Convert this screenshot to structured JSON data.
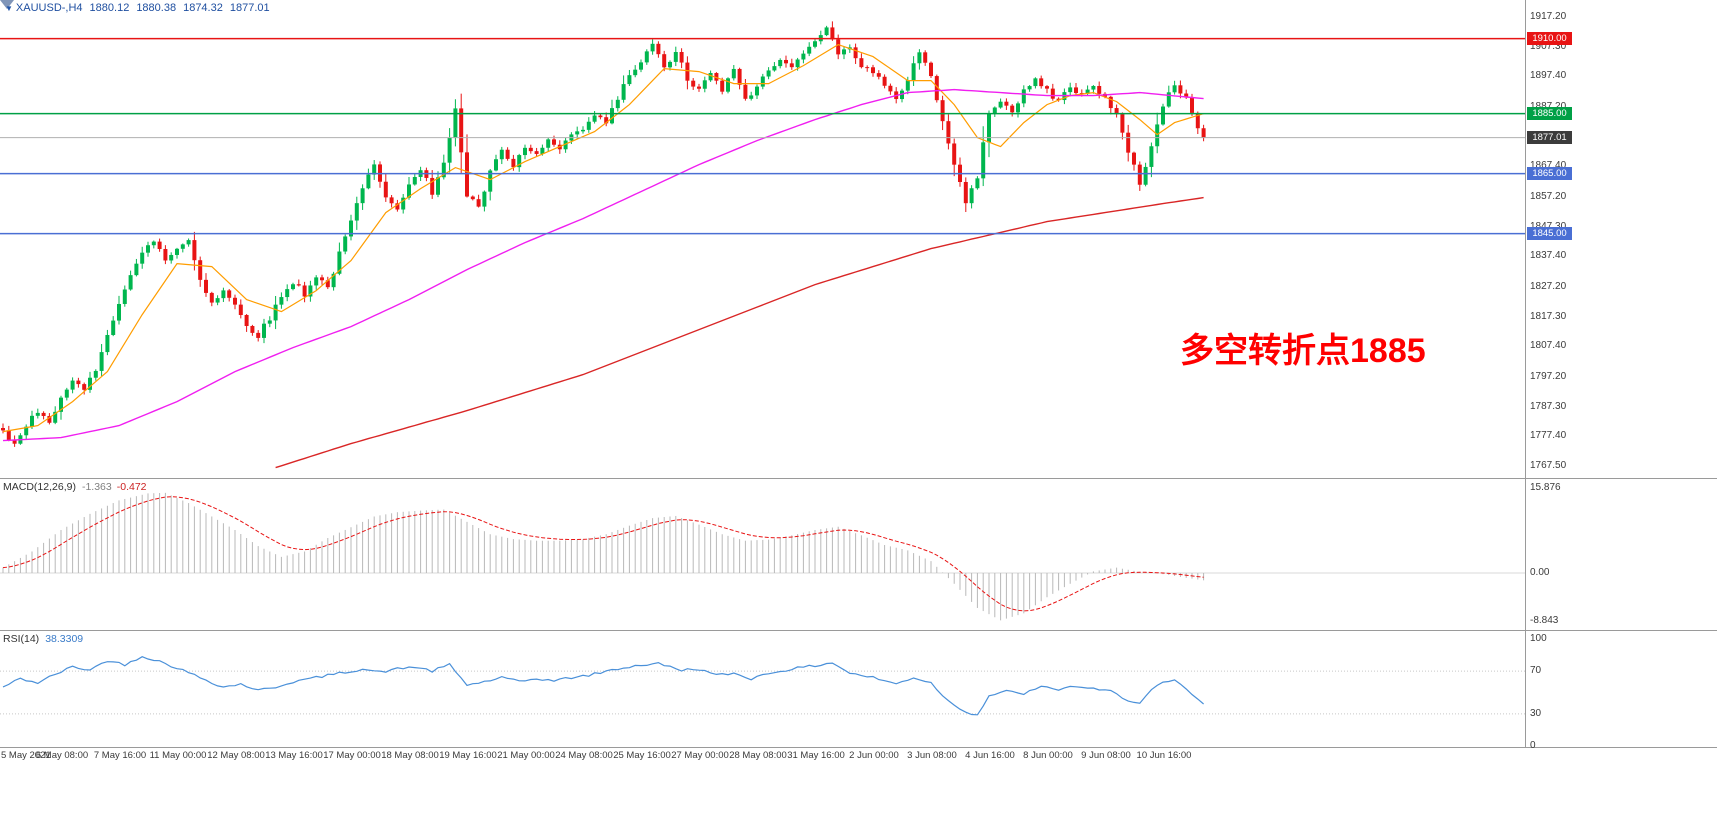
{
  "header": {
    "symbol_timeframe": "XAUUSD-,H4",
    "open": "1880.12",
    "high": "1880.38",
    "low": "1874.32",
    "close": "1877.01"
  },
  "colors": {
    "bull": "#00b64e",
    "bear": "#e81414",
    "ma_fast": "#ff9d00",
    "ma_mid": "#f01ff0",
    "ma_slow": "#d92626",
    "macd_hist": "#b8b8b8",
    "macd_signal": "#e81414",
    "rsi_line": "#4a90d9",
    "header_text": "#1f4fa0",
    "annotation": "#ff0000",
    "axis_text": "#3a3a3a",
    "separator": "#9a9a9a",
    "current_price_line": "#b0b0b0",
    "current_price_badge": "#3c3c3c"
  },
  "chart_data": {
    "type": "candlestick",
    "title": "XAUUSD- H4 candlestick chart with MACD and RSI",
    "symbol": "XAUUSD-",
    "timeframe": "H4",
    "price_axis": {
      "min": 1767.5,
      "max": 1917.2,
      "ticks": [
        "1917.20",
        "1907.30",
        "1897.40",
        "1887.20",
        "1877.30",
        "1867.40",
        "1857.20",
        "1847.30",
        "1837.40",
        "1827.20",
        "1817.30",
        "1807.40",
        "1797.20",
        "1787.30",
        "1777.40",
        "1767.50"
      ]
    },
    "time_axis": {
      "labels": [
        "5 May 2021",
        "6 May 08:00",
        "7 May 16:00",
        "11 May 00:00",
        "12 May 08:00",
        "13 May 16:00",
        "17 May 00:00",
        "18 May 08:00",
        "19 May 16:00",
        "21 May 00:00",
        "24 May 08:00",
        "25 May 16:00",
        "27 May 00:00",
        "28 May 08:00",
        "31 May 16:00",
        "2 Jun 00:00",
        "3 Jun 08:00",
        "4 Jun 16:00",
        "8 Jun 00:00",
        "9 Jun 08:00",
        "10 Jun 16:00"
      ]
    },
    "horizontal_lines": [
      {
        "label": "1910.00",
        "price": 1910.0,
        "color": "#e81414",
        "badge_bg": "#e81414",
        "interactable": true
      },
      {
        "label": "1885.00",
        "price": 1885.0,
        "color": "#00a046",
        "badge_bg": "#00a046",
        "interactable": true
      },
      {
        "label": "1877.01",
        "price": 1877.01,
        "color": "#b0b0b0",
        "badge_bg": "#3c3c3c",
        "interactable": false
      },
      {
        "label": "1865.00",
        "price": 1865.0,
        "color": "#4a6fd4",
        "badge_bg": "#4a6fd4",
        "interactable": true
      },
      {
        "label": "1845.00",
        "price": 1845.0,
        "color": "#4a6fd4",
        "badge_bg": "#4a6fd4",
        "interactable": true
      }
    ],
    "annotation": {
      "text": "多空转折点1885"
    },
    "price_path": [
      [
        0,
        1779
      ],
      [
        2,
        1774
      ],
      [
        4,
        1781
      ],
      [
        6,
        1786
      ],
      [
        8,
        1783
      ],
      [
        10,
        1790
      ],
      [
        12,
        1795
      ],
      [
        14,
        1793
      ],
      [
        16,
        1800
      ],
      [
        18,
        1812
      ],
      [
        20,
        1822
      ],
      [
        22,
        1831
      ],
      [
        24,
        1838
      ],
      [
        26,
        1843
      ],
      [
        28,
        1836
      ],
      [
        30,
        1840
      ],
      [
        32,
        1843
      ],
      [
        34,
        1830
      ],
      [
        36,
        1822
      ],
      [
        38,
        1826
      ],
      [
        40,
        1821
      ],
      [
        42,
        1815
      ],
      [
        44,
        1811
      ],
      [
        46,
        1817
      ],
      [
        48,
        1824
      ],
      [
        50,
        1829
      ],
      [
        52,
        1825
      ],
      [
        54,
        1831
      ],
      [
        56,
        1827
      ],
      [
        58,
        1838
      ],
      [
        60,
        1849
      ],
      [
        62,
        1860
      ],
      [
        64,
        1868
      ],
      [
        66,
        1858
      ],
      [
        68,
        1854
      ],
      [
        70,
        1861
      ],
      [
        72,
        1866
      ],
      [
        74,
        1859
      ],
      [
        76,
        1869
      ],
      [
        78,
        1886
      ],
      [
        80,
        1858
      ],
      [
        82,
        1853
      ],
      [
        84,
        1866
      ],
      [
        86,
        1872
      ],
      [
        88,
        1867
      ],
      [
        90,
        1874
      ],
      [
        92,
        1871
      ],
      [
        94,
        1876
      ],
      [
        96,
        1873
      ],
      [
        98,
        1877
      ],
      [
        100,
        1880
      ],
      [
        102,
        1884
      ],
      [
        104,
        1882
      ],
      [
        106,
        1890
      ],
      [
        108,
        1898
      ],
      [
        110,
        1902
      ],
      [
        112,
        1908
      ],
      [
        114,
        1900
      ],
      [
        116,
        1906
      ],
      [
        118,
        1896
      ],
      [
        120,
        1893
      ],
      [
        122,
        1898
      ],
      [
        124,
        1893
      ],
      [
        126,
        1899
      ],
      [
        128,
        1890
      ],
      [
        130,
        1894
      ],
      [
        132,
        1899
      ],
      [
        134,
        1903
      ],
      [
        136,
        1900
      ],
      [
        138,
        1906
      ],
      [
        140,
        1910
      ],
      [
        142,
        1914
      ],
      [
        144,
        1904
      ],
      [
        146,
        1908
      ],
      [
        148,
        1901
      ],
      [
        150,
        1899
      ],
      [
        152,
        1894
      ],
      [
        154,
        1889
      ],
      [
        156,
        1897
      ],
      [
        158,
        1906
      ],
      [
        160,
        1898
      ],
      [
        162,
        1882
      ],
      [
        164,
        1868
      ],
      [
        166,
        1856
      ],
      [
        168,
        1863
      ],
      [
        170,
        1886
      ],
      [
        172,
        1890
      ],
      [
        174,
        1886
      ],
      [
        176,
        1892
      ],
      [
        178,
        1896
      ],
      [
        180,
        1893
      ],
      [
        182,
        1889
      ],
      [
        184,
        1894
      ],
      [
        186,
        1891
      ],
      [
        188,
        1895
      ],
      [
        190,
        1890
      ],
      [
        192,
        1884
      ],
      [
        194,
        1872
      ],
      [
        196,
        1862
      ],
      [
        198,
        1874
      ],
      [
        200,
        1888
      ],
      [
        202,
        1895
      ],
      [
        204,
        1890
      ],
      [
        206,
        1880
      ],
      [
        207,
        1877.01
      ]
    ],
    "moving_averages": [
      {
        "name": "ma-fast",
        "points": [
          [
            0,
            1779
          ],
          [
            6,
            1781
          ],
          [
            12,
            1789
          ],
          [
            18,
            1799
          ],
          [
            24,
            1818
          ],
          [
            30,
            1835
          ],
          [
            36,
            1834
          ],
          [
            42,
            1823
          ],
          [
            48,
            1819
          ],
          [
            54,
            1826
          ],
          [
            60,
            1836
          ],
          [
            66,
            1852
          ],
          [
            72,
            1860
          ],
          [
            78,
            1867
          ],
          [
            84,
            1863
          ],
          [
            90,
            1869
          ],
          [
            96,
            1874
          ],
          [
            102,
            1879
          ],
          [
            108,
            1888
          ],
          [
            114,
            1900
          ],
          [
            120,
            1899
          ],
          [
            126,
            1895
          ],
          [
            132,
            1895
          ],
          [
            138,
            1901
          ],
          [
            144,
            1908
          ],
          [
            150,
            1904
          ],
          [
            156,
            1896
          ],
          [
            160,
            1896
          ],
          [
            164,
            1888
          ],
          [
            168,
            1877
          ],
          [
            172,
            1874
          ],
          [
            176,
            1882
          ],
          [
            180,
            1888
          ],
          [
            184,
            1891
          ],
          [
            188,
            1892
          ],
          [
            192,
            1889
          ],
          [
            196,
            1883
          ],
          [
            199,
            1878
          ],
          [
            202,
            1882
          ],
          [
            207,
            1885
          ]
        ]
      },
      {
        "name": "ma-mid",
        "points": [
          [
            0,
            1776
          ],
          [
            10,
            1777
          ],
          [
            20,
            1781
          ],
          [
            30,
            1789
          ],
          [
            40,
            1799
          ],
          [
            50,
            1807
          ],
          [
            60,
            1814
          ],
          [
            70,
            1823
          ],
          [
            80,
            1833
          ],
          [
            90,
            1842
          ],
          [
            100,
            1850
          ],
          [
            110,
            1859
          ],
          [
            120,
            1868
          ],
          [
            130,
            1876
          ],
          [
            140,
            1883
          ],
          [
            148,
            1888
          ],
          [
            156,
            1892
          ],
          [
            164,
            1893
          ],
          [
            172,
            1892
          ],
          [
            180,
            1891
          ],
          [
            188,
            1891
          ],
          [
            196,
            1892
          ],
          [
            207,
            1890
          ]
        ]
      },
      {
        "name": "ma-slow",
        "points": [
          [
            47,
            1767
          ],
          [
            60,
            1775
          ],
          [
            80,
            1786
          ],
          [
            100,
            1798
          ],
          [
            120,
            1813
          ],
          [
            140,
            1828
          ],
          [
            160,
            1840
          ],
          [
            180,
            1849
          ],
          [
            200,
            1855
          ],
          [
            207,
            1857
          ]
        ]
      }
    ],
    "macd": {
      "name": "MACD(12,26,9)",
      "value_main": "-1.363",
      "value_signal": "-0.472",
      "axis_ticks": [
        "15.876",
        "0.00",
        "-8.843"
      ],
      "points": [
        [
          0,
          1
        ],
        [
          5,
          4
        ],
        [
          10,
          8
        ],
        [
          15,
          11
        ],
        [
          20,
          13.5
        ],
        [
          25,
          14.8
        ],
        [
          28,
          14.9
        ],
        [
          32,
          13
        ],
        [
          36,
          10.5
        ],
        [
          40,
          8
        ],
        [
          44,
          5
        ],
        [
          48,
          3
        ],
        [
          52,
          4
        ],
        [
          56,
          6.5
        ],
        [
          60,
          8.5
        ],
        [
          64,
          10.5
        ],
        [
          68,
          11.3
        ],
        [
          72,
          11.6
        ],
        [
          76,
          11.8
        ],
        [
          80,
          9.5
        ],
        [
          84,
          7.2
        ],
        [
          88,
          6.3
        ],
        [
          92,
          6
        ],
        [
          96,
          6
        ],
        [
          100,
          6.3
        ],
        [
          104,
          7.2
        ],
        [
          108,
          8.8
        ],
        [
          112,
          10.2
        ],
        [
          116,
          10.6
        ],
        [
          120,
          9
        ],
        [
          124,
          7.2
        ],
        [
          128,
          6
        ],
        [
          132,
          6.2
        ],
        [
          136,
          7
        ],
        [
          140,
          8
        ],
        [
          144,
          8.6
        ],
        [
          148,
          7
        ],
        [
          152,
          5.2
        ],
        [
          156,
          4.2
        ],
        [
          160,
          2.2
        ],
        [
          164,
          -2
        ],
        [
          168,
          -6.5
        ],
        [
          172,
          -8.8
        ],
        [
          176,
          -7.5
        ],
        [
          180,
          -4.5
        ],
        [
          184,
          -2
        ],
        [
          188,
          0.3
        ],
        [
          192,
          1
        ],
        [
          196,
          0.2
        ],
        [
          200,
          -0.2
        ],
        [
          204,
          -0.9
        ],
        [
          207,
          -1.363
        ]
      ]
    },
    "rsi": {
      "name": "RSI(14)",
      "value": "38.3309",
      "axis_ticks": [
        "100",
        "70",
        "30",
        "0"
      ],
      "levels": [
        70,
        30
      ],
      "points": [
        [
          0,
          55
        ],
        [
          3,
          63
        ],
        [
          6,
          59
        ],
        [
          9,
          67
        ],
        [
          12,
          74
        ],
        [
          15,
          71
        ],
        [
          18,
          80
        ],
        [
          21,
          76
        ],
        [
          24,
          84
        ],
        [
          27,
          79
        ],
        [
          30,
          73
        ],
        [
          34,
          64
        ],
        [
          38,
          55
        ],
        [
          41,
          58
        ],
        [
          44,
          52
        ],
        [
          47,
          55
        ],
        [
          50,
          60
        ],
        [
          54,
          64
        ],
        [
          58,
          68
        ],
        [
          62,
          72
        ],
        [
          65,
          69
        ],
        [
          68,
          72
        ],
        [
          71,
          74
        ],
        [
          74,
          70
        ],
        [
          77,
          76
        ],
        [
          80,
          57
        ],
        [
          83,
          60
        ],
        [
          86,
          64
        ],
        [
          89,
          60
        ],
        [
          92,
          63
        ],
        [
          95,
          61
        ],
        [
          98,
          64
        ],
        [
          101,
          66
        ],
        [
          105,
          71
        ],
        [
          109,
          75
        ],
        [
          113,
          77
        ],
        [
          117,
          71
        ],
        [
          120,
          72
        ],
        [
          123,
          66
        ],
        [
          126,
          68
        ],
        [
          129,
          63
        ],
        [
          132,
          68
        ],
        [
          136,
          72
        ],
        [
          140,
          75
        ],
        [
          143,
          78
        ],
        [
          146,
          68
        ],
        [
          150,
          64
        ],
        [
          154,
          58
        ],
        [
          157,
          64
        ],
        [
          160,
          59
        ],
        [
          163,
          42
        ],
        [
          166,
          32
        ],
        [
          168,
          29
        ],
        [
          170,
          47
        ],
        [
          173,
          51
        ],
        [
          176,
          49
        ],
        [
          179,
          55
        ],
        [
          182,
          53
        ],
        [
          185,
          56
        ],
        [
          188,
          53
        ],
        [
          191,
          51
        ],
        [
          194,
          43
        ],
        [
          196,
          40
        ],
        [
          198,
          52
        ],
        [
          200,
          59
        ],
        [
          202,
          61
        ],
        [
          204,
          53
        ],
        [
          206,
          44
        ],
        [
          207,
          38.33
        ]
      ]
    }
  }
}
